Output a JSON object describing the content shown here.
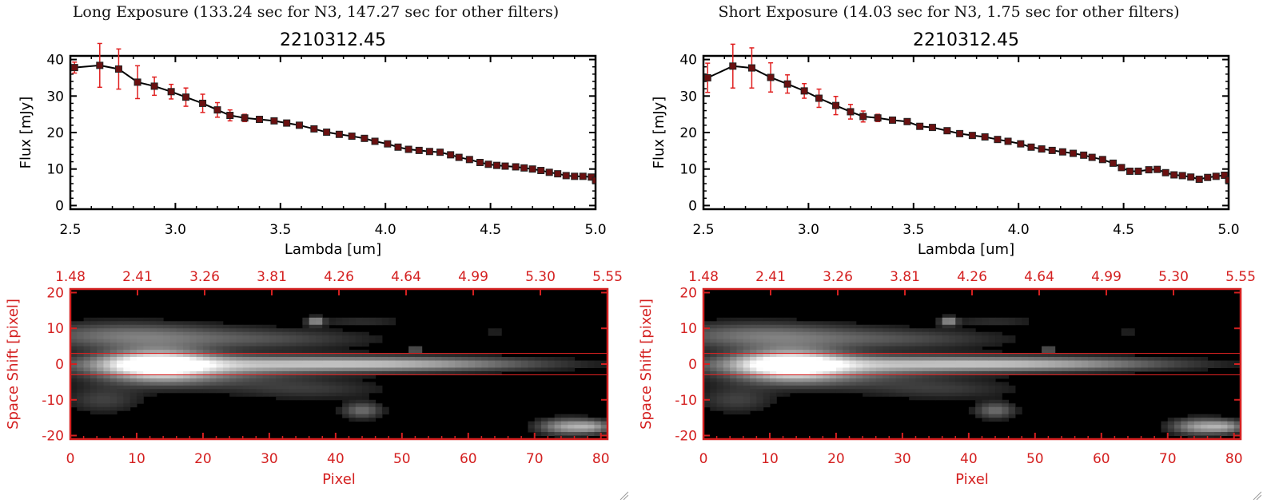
{
  "panels": [
    {
      "title": "Long Exposure (133.24 sec for N3, 147.27 sec for other filters)",
      "spectrum": {
        "type": "line",
        "title": "2210312.45",
        "xlabel": "Lambda [um]",
        "ylabel": "Flux [mJy]",
        "xlim": [
          2.5,
          5.0
        ],
        "ylim": [
          -1,
          41
        ],
        "xticks": [
          "2.5",
          "3.0",
          "3.5",
          "4.0",
          "4.5",
          "5.0"
        ],
        "yticks": [
          "0",
          "10",
          "20",
          "30",
          "40"
        ],
        "points": [
          [
            2.52,
            37.8,
            1.5
          ],
          [
            2.64,
            38.4,
            6.0
          ],
          [
            2.73,
            37.4,
            5.5
          ],
          [
            2.82,
            33.8,
            4.5
          ],
          [
            2.9,
            32.7,
            2.5
          ],
          [
            2.98,
            31.2,
            2.0
          ],
          [
            3.05,
            29.7,
            2.5
          ],
          [
            3.13,
            28.0,
            2.5
          ],
          [
            3.2,
            26.2,
            2.0
          ],
          [
            3.26,
            24.7,
            1.5
          ],
          [
            3.33,
            24.0,
            1.0
          ],
          [
            3.4,
            23.6,
            0.8
          ],
          [
            3.47,
            23.2,
            0.6
          ],
          [
            3.53,
            22.6,
            0.5
          ],
          [
            3.59,
            22.0,
            0.5
          ],
          [
            3.66,
            21.0,
            0.5
          ],
          [
            3.72,
            20.1,
            0.5
          ],
          [
            3.78,
            19.5,
            0.5
          ],
          [
            3.84,
            19.0,
            0.5
          ],
          [
            3.9,
            18.4,
            0.5
          ],
          [
            3.95,
            17.6,
            0.5
          ],
          [
            4.01,
            16.9,
            0.5
          ],
          [
            4.06,
            16.0,
            0.5
          ],
          [
            4.11,
            15.4,
            0.5
          ],
          [
            4.16,
            15.1,
            0.5
          ],
          [
            4.21,
            14.8,
            0.5
          ],
          [
            4.26,
            14.6,
            0.5
          ],
          [
            4.31,
            13.9,
            0.5
          ],
          [
            4.35,
            13.2,
            0.5
          ],
          [
            4.4,
            12.6,
            0.5
          ],
          [
            4.45,
            11.8,
            0.5
          ],
          [
            4.49,
            11.3,
            0.5
          ],
          [
            4.53,
            11.0,
            0.5
          ],
          [
            4.57,
            10.8,
            0.5
          ],
          [
            4.62,
            10.6,
            0.5
          ],
          [
            4.66,
            10.3,
            0.5
          ],
          [
            4.7,
            10.0,
            0.5
          ],
          [
            4.74,
            9.6,
            0.5
          ],
          [
            4.78,
            9.1,
            0.5
          ],
          [
            4.82,
            8.7,
            0.5
          ],
          [
            4.86,
            8.2,
            0.5
          ],
          [
            4.9,
            8.0,
            0.5
          ],
          [
            4.94,
            8.0,
            0.5
          ],
          [
            4.98,
            7.8,
            0.5
          ],
          [
            5.0,
            6.9,
            0.5
          ]
        ]
      },
      "image": {
        "type": "heatmap",
        "xlabel": "Pixel",
        "ylabel": "Space Shift [pixel]",
        "xlim": [
          0,
          81
        ],
        "ylim": [
          -21,
          21
        ],
        "xticks": [
          "0",
          "10",
          "20",
          "30",
          "40",
          "50",
          "60",
          "70",
          "80"
        ],
        "yticks": [
          "-20",
          "-10",
          "0",
          "10",
          "20"
        ],
        "top_ticks": [
          "1.48",
          "2.41",
          "3.26",
          "3.81",
          "4.26",
          "4.64",
          "4.99",
          "5.30",
          "5.55"
        ],
        "aperture": [
          -3,
          3
        ],
        "blobs": [
          [
            13,
            0,
            5.5,
            2.8,
            1.0
          ],
          [
            30,
            0,
            20,
            1.6,
            0.55
          ],
          [
            52,
            0,
            14,
            1.2,
            0.35
          ],
          [
            8,
            8,
            10,
            2.5,
            0.35
          ],
          [
            28,
            7,
            12,
            2.0,
            0.22
          ],
          [
            18,
            -3,
            10,
            2.5,
            0.3
          ],
          [
            5,
            -10,
            4,
            2.5,
            0.18
          ],
          [
            36,
            -7,
            8,
            2.0,
            0.15
          ],
          [
            37,
            12,
            0.8,
            0.8,
            0.55
          ],
          [
            52,
            4,
            0.5,
            0.5,
            0.5
          ],
          [
            44,
            12,
            5,
            0.8,
            0.12
          ],
          [
            44,
            -13,
            2,
            1.5,
            0.35
          ],
          [
            75,
            -17.5,
            3,
            1.5,
            0.55
          ],
          [
            79,
            -17.5,
            2,
            1.2,
            0.35
          ],
          [
            64,
            9,
            0.5,
            0.5,
            0.18
          ],
          [
            71,
            5,
            0.5,
            0.5,
            0.15
          ]
        ]
      }
    },
    {
      "title": "Short Exposure (14.03 sec for N3, 1.75 sec for other filters)",
      "spectrum": {
        "type": "line",
        "title": "2210312.45",
        "xlabel": "Lambda [um]",
        "ylabel": "Flux [mJy]",
        "xlim": [
          2.5,
          5.0
        ],
        "ylim": [
          -1,
          41
        ],
        "xticks": [
          "2.5",
          "3.0",
          "3.5",
          "4.0",
          "4.5",
          "5.0"
        ],
        "yticks": [
          "0",
          "10",
          "20",
          "30",
          "40"
        ],
        "points": [
          [
            2.52,
            35.0,
            4.0
          ],
          [
            2.64,
            38.2,
            6.0
          ],
          [
            2.73,
            37.7,
            5.5
          ],
          [
            2.82,
            35.1,
            4.0
          ],
          [
            2.9,
            33.3,
            2.5
          ],
          [
            2.98,
            31.4,
            2.0
          ],
          [
            3.05,
            29.4,
            2.5
          ],
          [
            3.13,
            27.4,
            2.5
          ],
          [
            3.2,
            25.7,
            2.0
          ],
          [
            3.26,
            24.4,
            1.5
          ],
          [
            3.33,
            24.0,
            1.0
          ],
          [
            3.4,
            23.4,
            0.8
          ],
          [
            3.47,
            23.0,
            0.6
          ],
          [
            3.53,
            21.7,
            0.5
          ],
          [
            3.59,
            21.4,
            0.5
          ],
          [
            3.66,
            20.5,
            0.5
          ],
          [
            3.72,
            19.7,
            0.5
          ],
          [
            3.78,
            19.2,
            0.5
          ],
          [
            3.84,
            18.8,
            0.5
          ],
          [
            3.9,
            18.1,
            0.5
          ],
          [
            3.95,
            17.6,
            0.5
          ],
          [
            4.01,
            16.9,
            0.5
          ],
          [
            4.06,
            16.0,
            0.5
          ],
          [
            4.11,
            15.5,
            0.5
          ],
          [
            4.16,
            15.1,
            0.5
          ],
          [
            4.21,
            14.7,
            0.5
          ],
          [
            4.26,
            14.3,
            0.5
          ],
          [
            4.31,
            13.8,
            0.5
          ],
          [
            4.35,
            13.2,
            0.5
          ],
          [
            4.4,
            12.6,
            0.5
          ],
          [
            4.45,
            11.6,
            0.5
          ],
          [
            4.49,
            10.4,
            0.5
          ],
          [
            4.53,
            9.4,
            0.5
          ],
          [
            4.57,
            9.4,
            0.5
          ],
          [
            4.62,
            9.8,
            0.5
          ],
          [
            4.66,
            9.9,
            0.5
          ],
          [
            4.7,
            9.0,
            0.5
          ],
          [
            4.74,
            8.4,
            0.5
          ],
          [
            4.78,
            8.2,
            0.5
          ],
          [
            4.82,
            7.8,
            0.5
          ],
          [
            4.86,
            7.2,
            0.5
          ],
          [
            4.9,
            7.7,
            0.5
          ],
          [
            4.94,
            8.0,
            0.5
          ],
          [
            4.98,
            8.3,
            0.5
          ],
          [
            5.0,
            7.0,
            0.5
          ]
        ]
      },
      "image": {
        "type": "heatmap",
        "xlabel": "Pixel",
        "ylabel": "Space Shift [pixel]",
        "xlim": [
          0,
          81
        ],
        "ylim": [
          -21,
          21
        ],
        "xticks": [
          "0",
          "10",
          "20",
          "30",
          "40",
          "50",
          "60",
          "70",
          "80"
        ],
        "yticks": [
          "-20",
          "-10",
          "0",
          "10",
          "20"
        ],
        "top_ticks": [
          "1.48",
          "2.41",
          "3.26",
          "3.81",
          "4.26",
          "4.64",
          "4.99",
          "5.30",
          "5.55"
        ],
        "aperture": [
          -3,
          3
        ],
        "blobs": [
          [
            13,
            0,
            5.5,
            2.8,
            1.0
          ],
          [
            30,
            0,
            20,
            1.6,
            0.55
          ],
          [
            52,
            0,
            14,
            1.2,
            0.35
          ],
          [
            8,
            8,
            10,
            2.5,
            0.35
          ],
          [
            28,
            7,
            12,
            2.0,
            0.22
          ],
          [
            18,
            -3,
            10,
            2.5,
            0.3
          ],
          [
            5,
            -10,
            4,
            2.5,
            0.18
          ],
          [
            36,
            -7,
            8,
            2.0,
            0.15
          ],
          [
            37,
            12,
            0.8,
            0.8,
            0.55
          ],
          [
            52,
            4,
            0.5,
            0.5,
            0.5
          ],
          [
            44,
            12,
            5,
            0.8,
            0.12
          ],
          [
            44,
            -13,
            2,
            1.5,
            0.35
          ],
          [
            75,
            -17.5,
            3,
            1.5,
            0.55
          ],
          [
            79,
            -17.5,
            2,
            1.2,
            0.35
          ],
          [
            64,
            9,
            0.5,
            0.5,
            0.18
          ],
          [
            71,
            5,
            0.5,
            0.5,
            0.15
          ]
        ]
      }
    }
  ],
  "chart_data": [
    {
      "type": "line",
      "title": "2210312.45",
      "xlabel": "Lambda [um]",
      "ylabel": "Flux [mJy]",
      "xlim": [
        2.5,
        5.0
      ],
      "ylim": [
        -1,
        41
      ],
      "series": [
        {
          "x": [
            2.52,
            2.64,
            2.73,
            2.82,
            2.9,
            2.98,
            3.05,
            3.13,
            3.2,
            3.26,
            3.33,
            3.4,
            3.47,
            3.53,
            3.59,
            3.66,
            3.72,
            3.78,
            3.84,
            3.9,
            3.95,
            4.01,
            4.06,
            4.11,
            4.16,
            4.21,
            4.26,
            4.31,
            4.35,
            4.4,
            4.45,
            4.49,
            4.53,
            4.57,
            4.62,
            4.66,
            4.7,
            4.74,
            4.78,
            4.82,
            4.86,
            4.9,
            4.94,
            4.98,
            5.0
          ],
          "y": [
            37.8,
            38.4,
            37.4,
            33.8,
            32.7,
            31.2,
            29.7,
            28.0,
            26.2,
            24.7,
            24.0,
            23.6,
            23.2,
            22.6,
            22.0,
            21.0,
            20.1,
            19.5,
            19.0,
            18.4,
            17.6,
            16.9,
            16.0,
            15.4,
            15.1,
            14.8,
            14.6,
            13.9,
            13.2,
            12.6,
            11.8,
            11.3,
            11.0,
            10.8,
            10.6,
            10.3,
            10.0,
            9.6,
            9.1,
            8.7,
            8.2,
            8.0,
            8.0,
            7.8,
            6.9
          ]
        }
      ]
    },
    {
      "type": "heatmap",
      "xlabel": "Pixel",
      "ylabel": "Space Shift [pixel]",
      "xlim": [
        0,
        81
      ],
      "ylim": [
        -21,
        21
      ]
    },
    {
      "type": "line",
      "title": "2210312.45",
      "xlabel": "Lambda [um]",
      "ylabel": "Flux [mJy]",
      "xlim": [
        2.5,
        5.0
      ],
      "ylim": [
        -1,
        41
      ],
      "series": [
        {
          "x": [
            2.52,
            2.64,
            2.73,
            2.82,
            2.9,
            2.98,
            3.05,
            3.13,
            3.2,
            3.26,
            3.33,
            3.4,
            3.47,
            3.53,
            3.59,
            3.66,
            3.72,
            3.78,
            3.84,
            3.9,
            3.95,
            4.01,
            4.06,
            4.11,
            4.16,
            4.21,
            4.26,
            4.31,
            4.35,
            4.4,
            4.45,
            4.49,
            4.53,
            4.57,
            4.62,
            4.66,
            4.7,
            4.74,
            4.78,
            4.82,
            4.86,
            4.9,
            4.94,
            4.98,
            5.0
          ],
          "y": [
            35.0,
            38.2,
            37.7,
            35.1,
            33.3,
            31.4,
            29.4,
            27.4,
            25.7,
            24.4,
            24.0,
            23.4,
            23.0,
            21.7,
            21.4,
            20.5,
            19.7,
            19.2,
            18.8,
            18.1,
            17.6,
            16.9,
            16.0,
            15.5,
            15.1,
            14.7,
            14.3,
            13.8,
            13.2,
            12.6,
            11.6,
            10.4,
            9.4,
            9.4,
            9.8,
            9.9,
            9.0,
            8.4,
            8.2,
            7.8,
            7.2,
            7.7,
            8.0,
            8.3,
            7.0
          ]
        }
      ]
    },
    {
      "type": "heatmap",
      "xlabel": "Pixel",
      "ylabel": "Space Shift [pixel]",
      "xlim": [
        0,
        81
      ],
      "ylim": [
        -21,
        21
      ]
    }
  ],
  "colors": {
    "axis": "#000000",
    "error_bar": "#e02020",
    "marker": "#6a1010",
    "line": "#000000",
    "image_axis": "#d42020",
    "aperture_line": "#d42020",
    "image_bg": "#000000"
  }
}
